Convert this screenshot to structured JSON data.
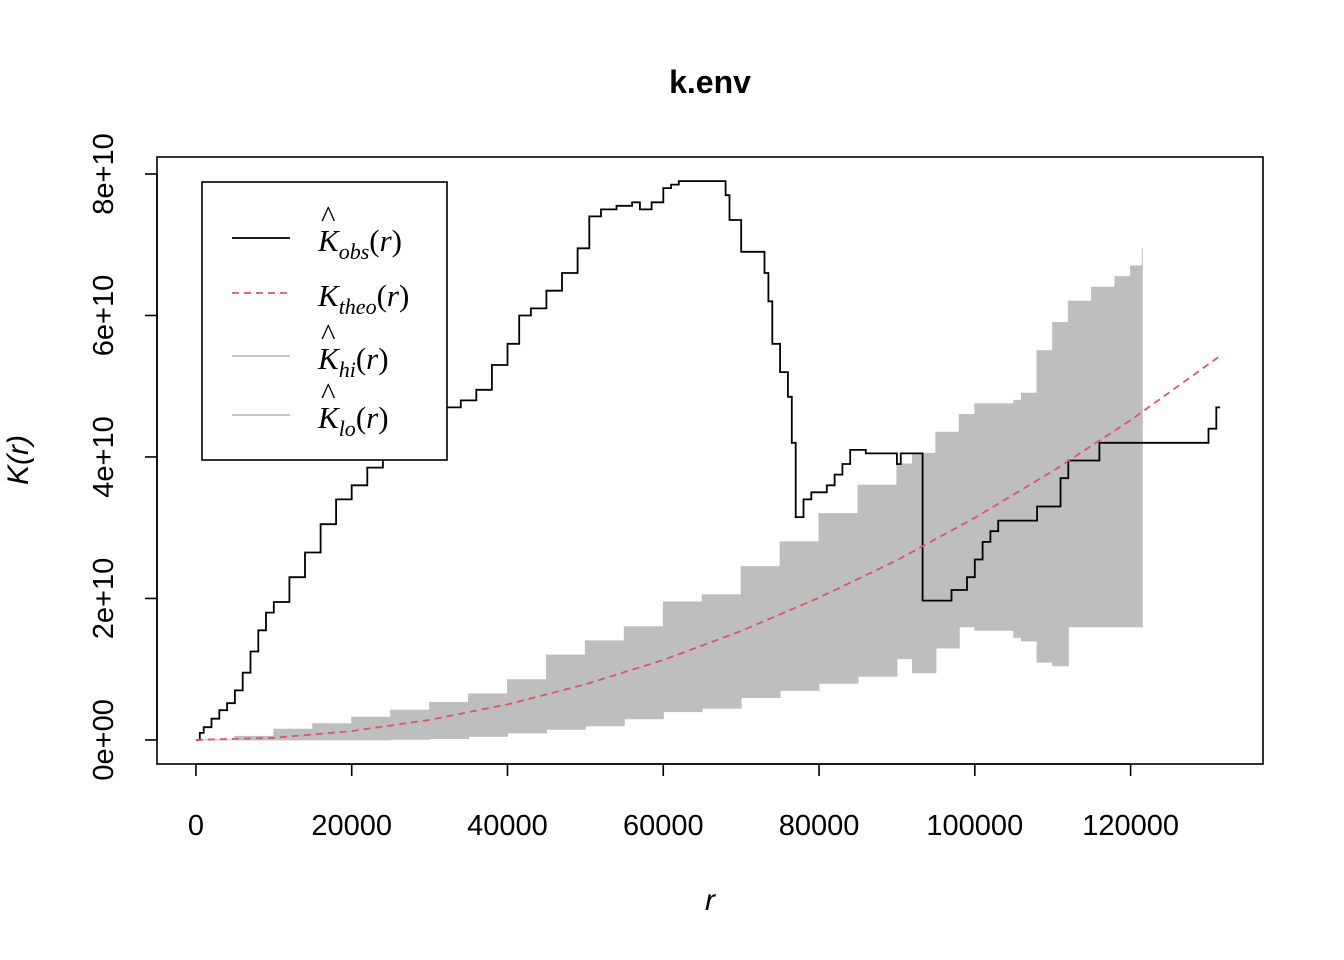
{
  "chart_data": {
    "type": "line",
    "title": "k.env",
    "xlabel": "r",
    "ylabel": "K(r)",
    "xlim": [
      -5000,
      137000
    ],
    "ylim": [
      -3400000000.0,
      82400000000.0
    ],
    "x_ticks": [
      0,
      20000,
      40000,
      60000,
      80000,
      100000,
      120000
    ],
    "x_tick_labels": [
      "0",
      "20000",
      "40000",
      "60000",
      "80000",
      "100000",
      "120000"
    ],
    "y_ticks": [
      0,
      20000000000.0,
      40000000000.0,
      60000000000.0,
      80000000000.0
    ],
    "y_tick_labels": [
      "0e+00",
      "2e+10",
      "4e+10",
      "6e+10",
      "8e+10"
    ],
    "grid": false,
    "legend_position": "top-left",
    "series": [
      {
        "name": "K̂_obs(r)",
        "legend": {
          "hat": "K",
          "sub": "obs",
          "arg": "(r)"
        },
        "color": "#000000",
        "style": "step",
        "x": [
          0,
          500,
          1000,
          2000,
          3000,
          4000,
          5000,
          6000,
          7000,
          8000,
          9000,
          10000,
          12000,
          14000,
          16000,
          18000,
          20000,
          22000,
          24000,
          26000,
          28000,
          30000,
          32000,
          34000,
          36000,
          38000,
          40000,
          41500,
          43000,
          45000,
          47000,
          49000,
          50500,
          52000,
          54000,
          56000,
          57000,
          58500,
          60000,
          61000,
          62000,
          64000,
          66000,
          68000,
          68500,
          70000,
          73000,
          73500,
          74000,
          75000,
          76000,
          76500,
          77000,
          78000,
          79000,
          80000,
          81000,
          82000,
          83000,
          84000,
          85000,
          86000,
          87000,
          88000,
          89000,
          90000,
          90500,
          91000,
          92000,
          93000,
          93300,
          94000,
          95000,
          96000,
          97000,
          98000,
          99000,
          100000,
          101000,
          102000,
          103000,
          104000,
          105000,
          106000,
          107000,
          108000,
          109000,
          110000,
          111000,
          112000,
          113000,
          116000,
          120000,
          125000,
          129000,
          129500,
          130000,
          130500,
          131000,
          131500
        ],
        "y": [
          0,
          1000000000.0,
          1800000000.0,
          3000000000.0,
          4200000000.0,
          5200000000.0,
          7000000000.0,
          9500000000.0,
          12500000000.0,
          15500000000.0,
          18000000000.0,
          19500000000.0,
          23000000000.0,
          26500000000.0,
          30500000000.0,
          34000000000.0,
          36000000000.0,
          38500000000.0,
          40000000000.0,
          41000000000.0,
          43000000000.0,
          45000000000.0,
          47000000000.0,
          48000000000.0,
          49500000000.0,
          53000000000.0,
          56000000000.0,
          60000000000.0,
          61000000000.0,
          63500000000.0,
          66000000000.0,
          69500000000.0,
          74000000000.0,
          75000000000.0,
          75500000000.0,
          76000000000.0,
          75000000000.0,
          76000000000.0,
          78000000000.0,
          78500000000.0,
          79000000000.0,
          79000000000.0,
          79000000000.0,
          77000000000.0,
          73500000000.0,
          69000000000.0,
          66000000000.0,
          62000000000.0,
          56000000000.0,
          52000000000.0,
          48500000000.0,
          42000000000.0,
          31500000000.0,
          34000000000.0,
          35000000000.0,
          35000000000.0,
          36000000000.0,
          37500000000.0,
          39000000000.0,
          41000000000.0,
          41000000000.0,
          40500000000.0,
          40500000000.0,
          40500000000.0,
          40500000000.0,
          39000000000.0,
          40500000000.0,
          40500000000.0,
          40500000000.0,
          40500000000.0,
          19700000000.0,
          19700000000.0,
          19700000000.0,
          19700000000.0,
          21200000000.0,
          21200000000.0,
          23000000000.0,
          25500000000.0,
          28000000000.0,
          29500000000.0,
          31000000000.0,
          31000000000.0,
          31000000000.0,
          31000000000.0,
          31000000000.0,
          33000000000.0,
          33000000000.0,
          33000000000.0,
          37000000000.0,
          39500000000.0,
          39500000000.0,
          42000000000.0,
          42000000000.0,
          42000000000.0,
          42000000000.0,
          42000000000.0,
          44000000000.0,
          44000000000.0,
          47000000000.0,
          47000000000.0
        ]
      },
      {
        "name": "K_theo(r)",
        "legend": {
          "hat": "",
          "sub": "theo",
          "arg": "(r)"
        },
        "color": "#DF536B",
        "style": "dashed",
        "x": [
          0,
          10000,
          20000,
          30000,
          40000,
          50000,
          60000,
          70000,
          80000,
          90000,
          100000,
          110000,
          120000,
          131500
        ],
        "y": [
          0,
          310000000.0,
          1250000000.0,
          2830000000.0,
          5030000000.0,
          7850000000.0,
          11300000000.0,
          15400000000.0,
          20100000000.0,
          25400000000.0,
          31400000000.0,
          38000000000.0,
          45200000000.0,
          54300000000.0
        ]
      },
      {
        "name": "K̂_hi(r)",
        "legend": {
          "hat": "K",
          "sub": "hi",
          "arg": "(r)"
        },
        "color": "#BEBEBE",
        "style": "envelope-upper",
        "x": [
          0,
          5000,
          10000,
          15000,
          20000,
          25000,
          30000,
          35000,
          40000,
          45000,
          50000,
          55000,
          60000,
          65000,
          70000,
          75000,
          80000,
          85000,
          90000,
          92000,
          95000,
          98000,
          100000,
          105000,
          106000,
          108000,
          110000,
          112000,
          115000,
          118000,
          120000,
          121500
        ],
        "y": [
          0,
          500000000.0,
          1500000000.0,
          2300000000.0,
          3200000000.0,
          4200000000.0,
          5300000000.0,
          6500000000.0,
          8500000000.0,
          12000000000.0,
          14000000000.0,
          16000000000.0,
          19500000000.0,
          20500000000.0,
          24500000000.0,
          28000000000.0,
          32000000000.0,
          36000000000.0,
          39000000000.0,
          40500000000.0,
          43500000000.0,
          46000000000.0,
          47500000000.0,
          48000000000.0,
          49000000000.0,
          55000000000.0,
          59000000000.0,
          62000000000.0,
          64000000000.0,
          65500000000.0,
          67000000000.0,
          69500000000.0
        ]
      },
      {
        "name": "K̂_lo(r)",
        "legend": {
          "hat": "K",
          "sub": "lo",
          "arg": "(r)"
        },
        "color": "#BEBEBE",
        "style": "envelope-lower",
        "x": [
          0,
          5000,
          10000,
          15000,
          20000,
          25000,
          30000,
          35000,
          40000,
          45000,
          50000,
          55000,
          60000,
          65000,
          70000,
          75000,
          80000,
          85000,
          90000,
          92000,
          95000,
          98000,
          100000,
          105000,
          106000,
          108000,
          110000,
          112000,
          115000,
          118000,
          120000,
          121500
        ],
        "y": [
          0,
          0,
          0,
          0,
          0,
          100000000.0,
          200000000.0,
          500000000.0,
          1000000000.0,
          1500000000.0,
          2000000000.0,
          3000000000.0,
          4000000000.0,
          4500000000.0,
          6000000000.0,
          7000000000.0,
          8000000000.0,
          9000000000.0,
          11500000000.0,
          9500000000.0,
          13000000000.0,
          16000000000.0,
          15500000000.0,
          14500000000.0,
          14000000000.0,
          11000000000.0,
          10500000000.0,
          16000000000.0,
          16000000000.0,
          16000000000.0,
          16000000000.0,
          20000000000.0
        ]
      }
    ]
  }
}
